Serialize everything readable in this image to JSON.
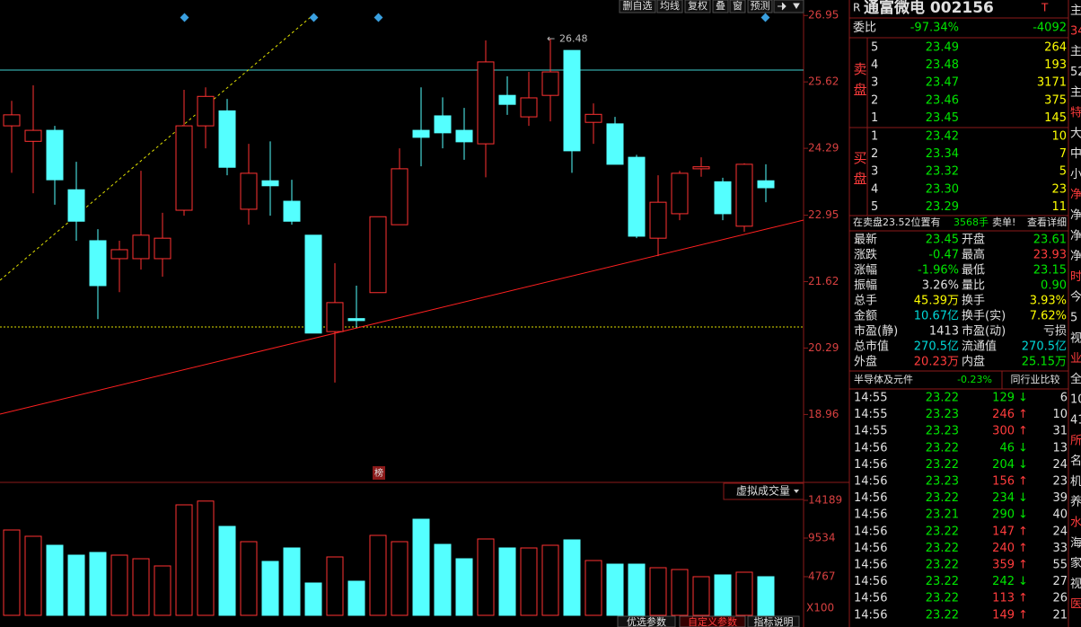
{
  "toolbar": [
    "删自选",
    "均线",
    "复权",
    "叠",
    "窗",
    "预测"
  ],
  "chart_data": [
    {
      "type": "candlestick",
      "open": [
        24.74,
        24.43,
        24.65,
        23.46,
        22.44,
        22.08,
        22.08,
        22.08,
        23.05,
        24.74,
        25.04,
        23.07,
        23.64,
        23.23,
        22.55,
        20.62,
        20.88,
        21.4,
        22.76,
        24.65,
        24.94,
        24.65,
        24.38,
        25.35,
        24.92,
        25.35,
        26.25,
        24.81,
        24.78,
        24.11,
        22.49,
        22.98,
        23.88,
        23.62,
        22.73,
        23.64
      ],
      "high": [
        25.24,
        25.55,
        24.74,
        24.02,
        22.67,
        22.44,
        23.84,
        23.0,
        25.46,
        25.51,
        25.28,
        24.38,
        24.43,
        23.66,
        22.55,
        21.99,
        21.54,
        22.92,
        24.29,
        25.51,
        25.31,
        25.1,
        26.45,
        25.73,
        25.82,
        26.48,
        26.25,
        25.19,
        24.92,
        24.16,
        23.75,
        23.84,
        24.11,
        23.7,
        23.99,
        23.97
      ],
      "low": [
        23.8,
        23.39,
        23.16,
        22.44,
        20.87,
        21.41,
        21.86,
        21.72,
        22.94,
        24.29,
        23.75,
        22.76,
        22.94,
        22.76,
        20.59,
        19.6,
        20.7,
        21.4,
        22.76,
        23.93,
        24.29,
        24.06,
        23.71,
        24.96,
        24.74,
        24.83,
        23.8,
        24.38,
        23.97,
        22.49,
        22.13,
        22.85,
        23.72,
        22.85,
        22.62,
        23.21
      ],
      "close": [
        24.96,
        24.65,
        23.66,
        22.83,
        21.54,
        22.26,
        22.55,
        22.49,
        24.74,
        25.33,
        23.91,
        23.79,
        23.54,
        22.83,
        20.59,
        21.2,
        20.84,
        22.92,
        23.88,
        24.51,
        24.6,
        24.42,
        26.02,
        25.17,
        25.3,
        25.82,
        24.24,
        24.97,
        23.97,
        22.53,
        23.21,
        23.79,
        23.92,
        22.98,
        23.97,
        23.5
      ],
      "ylim": [
        17.6,
        27.26
      ],
      "yticks": [
        26.95,
        25.62,
        24.29,
        22.95,
        21.62,
        20.29,
        18.96
      ],
      "annotation": {
        "arrow": "←",
        "value": 26.48
      },
      "marker": "榜"
    },
    {
      "type": "bar",
      "title": "虚拟成交量",
      "values": [
        10532,
        9756,
        8647,
        7428,
        7760,
        7428,
        6984,
        6097,
        13636,
        14100,
        10975,
        9091,
        6652,
        8315,
        3991,
        7206,
        4213,
        9867,
        9091,
        11863,
        8758,
        6984,
        9424,
        8315,
        8315,
        8647,
        9313,
        6763,
        6319,
        6319,
        5876,
        5654,
        4767,
        4989,
        5322,
        4767
      ],
      "ylim": [
        0,
        16408
      ],
      "yticks": [
        14189,
        9534,
        4767
      ],
      "unit": "X100"
    }
  ],
  "tabs": [
    "优选参数",
    "自定义参数",
    "指标说明"
  ],
  "quote": {
    "flag": "R",
    "title": "通富微电 002156",
    "badge": "T",
    "weibi": [
      "委比",
      "-97.34%",
      "-4092"
    ],
    "sell_label": "卖盘",
    "sell": [
      [
        "5",
        "23.49",
        "264"
      ],
      [
        "4",
        "23.48",
        "193"
      ],
      [
        "3",
        "23.47",
        "3171"
      ],
      [
        "2",
        "23.46",
        "375"
      ],
      [
        "1",
        "23.45",
        "145"
      ]
    ],
    "buy_label": "买盘",
    "buy": [
      [
        "1",
        "23.42",
        "10"
      ],
      [
        "2",
        "23.34",
        "7"
      ],
      [
        "3",
        "23.32",
        "5"
      ],
      [
        "4",
        "23.30",
        "23"
      ],
      [
        "5",
        "23.29",
        "11"
      ]
    ],
    "notice": [
      "在卖盘23.52位置有",
      "3568手",
      "卖单!",
      "查看详细"
    ],
    "stats": [
      [
        "最新",
        "23.45",
        "开盘",
        "23.61"
      ],
      [
        "涨跌",
        "-0.47",
        "最高",
        "23.93"
      ],
      [
        "涨幅",
        "-1.96%",
        "最低",
        "23.15"
      ],
      [
        "振幅",
        "3.26%",
        "量比",
        "0.90"
      ],
      [
        "总手",
        "45.39万",
        "换手",
        "3.93%"
      ],
      [
        "金额",
        "10.67亿",
        "换手(实)",
        "7.62%"
      ],
      [
        "市盈(静)",
        "1413",
        "市盈(动)",
        "亏损"
      ],
      [
        "总市值",
        "270.5亿",
        "流通值",
        "270.5亿"
      ],
      [
        "外盘",
        "20.23万",
        "内盘",
        "25.15万"
      ]
    ],
    "sector": [
      "半导体及元件",
      "-0.23%",
      "同行业比较"
    ],
    "ticks": [
      [
        "14:55",
        "23.22",
        "129",
        "↓",
        "6"
      ],
      [
        "14:55",
        "23.23",
        "246",
        "↑",
        "10"
      ],
      [
        "14:55",
        "23.23",
        "300",
        "↑",
        "31"
      ],
      [
        "14:56",
        "23.22",
        "46",
        "↓",
        "13"
      ],
      [
        "14:56",
        "23.22",
        "204",
        "↓",
        "24"
      ],
      [
        "14:56",
        "23.23",
        "156",
        "↑",
        "23"
      ],
      [
        "14:56",
        "23.22",
        "234",
        "↓",
        "39"
      ],
      [
        "14:56",
        "23.21",
        "290",
        "↓",
        "40"
      ],
      [
        "14:56",
        "23.22",
        "147",
        "↑",
        "24"
      ],
      [
        "14:56",
        "23.22",
        "240",
        "↑",
        "33"
      ],
      [
        "14:56",
        "23.22",
        "359",
        "↑",
        "55"
      ],
      [
        "14:56",
        "23.22",
        "242",
        "↓",
        "27"
      ],
      [
        "14:56",
        "23.22",
        "113",
        "↑",
        "26"
      ],
      [
        "14:56",
        "23.22",
        "149",
        "↑",
        "21"
      ]
    ]
  },
  "side_column": [
    "主",
    "34",
    "主",
    "52",
    "主",
    "特",
    "大",
    "中",
    "小",
    "净",
    "净",
    "净",
    "净",
    "时",
    "今",
    "5",
    "视",
    "业",
    "全",
    "10",
    "41",
    "所",
    "名",
    "机",
    "养",
    "水",
    "海",
    "家",
    "视",
    "医"
  ]
}
